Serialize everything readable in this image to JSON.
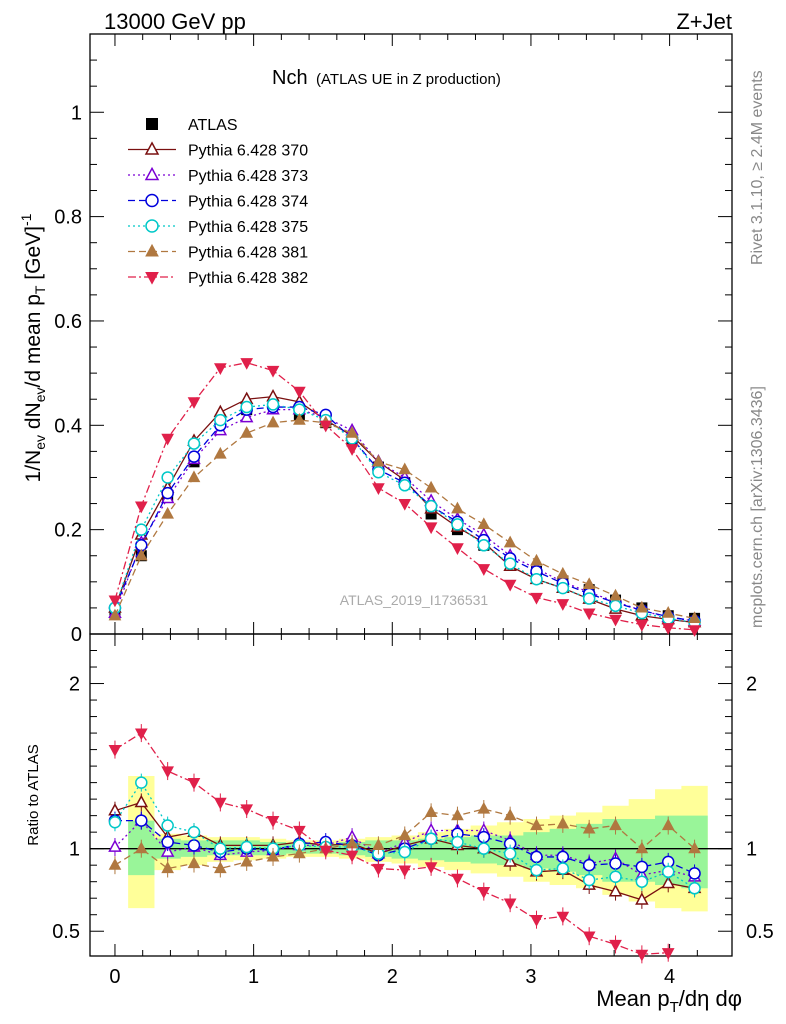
{
  "header": {
    "left": "13000 GeV pp",
    "right": "Z+Jet"
  },
  "title_main": "Nch",
  "title_sub": "(ATLAS UE in Z production)",
  "watermark": "ATLAS_2019_I1736531",
  "side_labels": {
    "rivet": "Rivet 3.1.10, ≥ 2.4M events",
    "mcplots": "mcplots.cern.ch [arXiv:1306.3436]"
  },
  "top_ylabel": "1/N_ev dN_ev/d mean p_T [GeV]^-1",
  "bottom_ylabel": "Ratio to ATLAS",
  "xlabel": "Mean p_T/dη dφ",
  "chart_data": [
    {
      "type": "line",
      "xlim": [
        -0.18,
        4.45
      ],
      "ylim": [
        0,
        1.15
      ],
      "xticks": [
        0,
        1,
        2,
        3,
        4
      ],
      "yticks": [
        0,
        0.2,
        0.4,
        0.6,
        0.8,
        1
      ],
      "ytick_labels": [
        "0",
        "0.2",
        "0.4",
        "0.6",
        "0.8",
        "1"
      ],
      "x": [
        0,
        0.19,
        0.38,
        0.57,
        0.76,
        0.95,
        1.14,
        1.33,
        1.52,
        1.71,
        1.9,
        2.09,
        2.28,
        2.47,
        2.66,
        2.85,
        3.04,
        3.23,
        3.42,
        3.61,
        3.8,
        3.99,
        4.18
      ],
      "data": {
        "name": "ATLAS",
        "values": [
          0.04,
          0.15,
          0.265,
          0.33,
          0.41,
          0.43,
          0.44,
          0.42,
          0.405,
          0.37,
          0.32,
          0.29,
          0.23,
          0.2,
          0.17,
          0.14,
          0.12,
          0.1,
          0.085,
          0.065,
          0.05,
          0.035,
          0.03
        ]
      },
      "series": [
        {
          "name": "Pythia 6.428 370",
          "color": "#7a1010",
          "marker": "triangle-open",
          "dash": "",
          "values": [
            0.05,
            0.19,
            0.28,
            0.37,
            0.425,
            0.45,
            0.455,
            0.445,
            0.41,
            0.38,
            0.33,
            0.295,
            0.24,
            0.205,
            0.175,
            0.13,
            0.105,
            0.088,
            0.067,
            0.048,
            0.035,
            0.028,
            0.022
          ]
        },
        {
          "name": "Pythia 6.428 373",
          "color": "#7b00d4",
          "marker": "triangle-open",
          "dash": "2,3",
          "values": [
            0.04,
            0.175,
            0.26,
            0.335,
            0.39,
            0.415,
            0.43,
            0.43,
            0.415,
            0.39,
            0.33,
            0.3,
            0.255,
            0.22,
            0.19,
            0.15,
            0.125,
            0.1,
            0.08,
            0.062,
            0.045,
            0.032,
            0.025
          ]
        },
        {
          "name": "Pythia 6.428 374",
          "color": "#0000dd",
          "marker": "circle-open",
          "dash": "7,4",
          "values": [
            0.05,
            0.17,
            0.27,
            0.34,
            0.4,
            0.43,
            0.435,
            0.435,
            0.42,
            0.375,
            0.315,
            0.29,
            0.245,
            0.215,
            0.18,
            0.145,
            0.12,
            0.097,
            0.077,
            0.06,
            0.045,
            0.033,
            0.025
          ]
        },
        {
          "name": "Pythia 6.428 375",
          "color": "#00c8c8",
          "marker": "circle-open",
          "dash": "2,3",
          "values": [
            0.05,
            0.2,
            0.3,
            0.365,
            0.41,
            0.435,
            0.44,
            0.43,
            0.41,
            0.375,
            0.31,
            0.285,
            0.245,
            0.21,
            0.17,
            0.135,
            0.105,
            0.088,
            0.068,
            0.054,
            0.04,
            0.03,
            0.022
          ]
        },
        {
          "name": "Pythia 6.428 381",
          "color": "#b07840",
          "marker": "triangle-filled",
          "dash": "7,4",
          "values": [
            0.035,
            0.15,
            0.23,
            0.3,
            0.345,
            0.385,
            0.405,
            0.41,
            0.405,
            0.385,
            0.33,
            0.315,
            0.28,
            0.24,
            0.21,
            0.175,
            0.14,
            0.115,
            0.095,
            0.073,
            0.05,
            0.04,
            0.03
          ]
        },
        {
          "name": "Pythia 6.428 382",
          "color": "#e0204a",
          "marker": "triangle-down-filled",
          "dash": "8,3,2,3",
          "values": [
            0.065,
            0.245,
            0.375,
            0.445,
            0.51,
            0.52,
            0.505,
            0.465,
            0.4,
            0.355,
            0.28,
            0.25,
            0.205,
            0.165,
            0.125,
            0.095,
            0.07,
            0.058,
            0.04,
            0.028,
            0.018,
            0.012,
            0.008
          ]
        }
      ]
    },
    {
      "type": "line",
      "ylim": [
        0.35,
        2.3
      ],
      "yticks": [
        0.5,
        1,
        2
      ],
      "ytick_labels": [
        "0.5",
        "1",
        "2"
      ],
      "reference": 1,
      "band_inner": [
        0.84,
        1.17,
        1.06,
        1.05,
        1.05,
        1.05,
        1.04,
        1.03,
        1.03,
        1.04,
        1.05,
        1.05,
        1.06,
        1.07,
        1.08,
        1.08,
        1.1,
        1.12,
        1.15,
        1.18,
        1.18,
        1.2,
        1.2
      ],
      "band_outer": [
        0.64,
        1.44,
        1.09,
        1.08,
        1.07,
        1.07,
        1.06,
        1.05,
        1.05,
        1.06,
        1.07,
        1.08,
        1.1,
        1.12,
        1.14,
        1.16,
        1.18,
        1.2,
        1.22,
        1.26,
        1.3,
        1.36,
        1.38
      ],
      "band_inner_low": [
        0.84,
        0.84,
        0.94,
        0.95,
        0.96,
        0.96,
        0.96,
        0.97,
        0.97,
        0.96,
        0.95,
        0.94,
        0.93,
        0.92,
        0.91,
        0.9,
        0.88,
        0.86,
        0.84,
        0.8,
        0.8,
        0.78,
        0.76
      ],
      "band_outer_low": [
        0.64,
        0.64,
        0.87,
        0.9,
        0.92,
        0.93,
        0.94,
        0.95,
        0.95,
        0.94,
        0.92,
        0.91,
        0.89,
        0.87,
        0.85,
        0.83,
        0.8,
        0.78,
        0.76,
        0.72,
        0.68,
        0.64,
        0.62
      ],
      "series": [
        {
          "name": "Pythia 6.428 370",
          "values": [
            1.23,
            1.28,
            1.07,
            1.1,
            1.02,
            1.02,
            1.02,
            1.04,
            1.02,
            1.03,
            0.97,
            1.02,
            1.06,
            1.02,
            1.0,
            0.92,
            0.86,
            0.87,
            0.78,
            0.74,
            0.69,
            0.79,
            0.76
          ]
        },
        {
          "name": "Pythia 6.428 373",
          "values": [
            1.01,
            1.17,
            0.98,
            1.01,
            0.96,
            0.98,
            0.99,
            1.02,
            1.02,
            1.07,
            0.97,
            1.04,
            1.11,
            1.11,
            1.11,
            1.05,
            0.96,
            0.96,
            0.91,
            0.94,
            0.84,
            0.87,
            0.83
          ]
        },
        {
          "name": "Pythia 6.428 374",
          "values": [
            1.17,
            1.17,
            1.04,
            1.02,
            0.98,
            1.0,
            0.99,
            1.03,
            1.04,
            1.02,
            0.96,
            1.0,
            1.06,
            1.09,
            1.07,
            1.03,
            0.95,
            0.95,
            0.9,
            0.91,
            0.89,
            0.92,
            0.85
          ]
        },
        {
          "name": "Pythia 6.428 375",
          "values": [
            1.16,
            1.4,
            1.14,
            1.1,
            1.0,
            1.01,
            1.0,
            1.02,
            1.01,
            1.01,
            0.97,
            0.98,
            1.06,
            1.04,
            1.0,
            0.97,
            0.87,
            0.88,
            0.81,
            0.83,
            0.8,
            0.86,
            0.76
          ]
        },
        {
          "name": "Pythia 6.428 381",
          "values": [
            0.9,
            1.0,
            0.88,
            0.91,
            0.88,
            0.92,
            0.95,
            0.97,
            1.0,
            1.03,
            1.02,
            1.08,
            1.22,
            1.2,
            1.24,
            1.2,
            1.14,
            1.15,
            1.12,
            1.14,
            1.0,
            1.14,
            1.0
          ]
        },
        {
          "name": "Pythia 6.428 382",
          "values": [
            1.6,
            1.7,
            1.47,
            1.4,
            1.28,
            1.24,
            1.17,
            1.11,
            0.99,
            0.96,
            0.88,
            0.87,
            0.89,
            0.82,
            0.74,
            0.67,
            0.57,
            0.59,
            0.47,
            0.42,
            0.36,
            0.37,
            0.33
          ]
        }
      ]
    }
  ]
}
